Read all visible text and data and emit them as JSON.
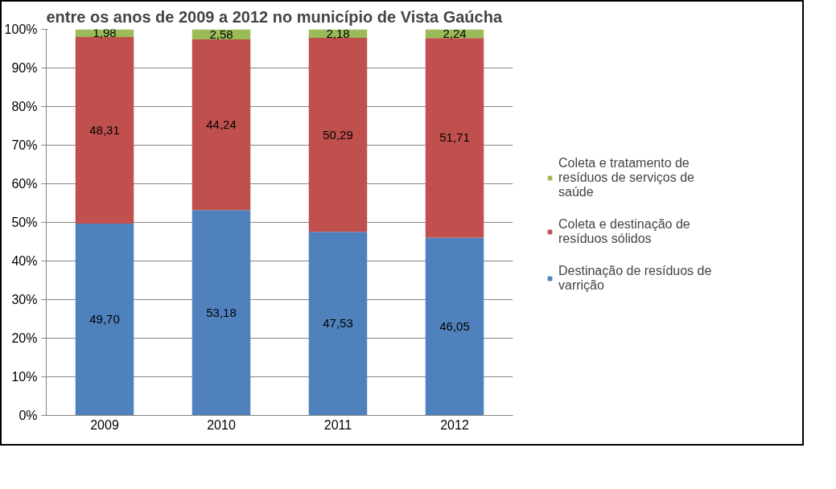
{
  "chart_data": {
    "type": "bar",
    "stacked": true,
    "title": "entre os anos de 2009 a 2012 no município de Vista Gaúcha",
    "categories": [
      "2009",
      "2010",
      "2011",
      "2012"
    ],
    "series": [
      {
        "name": "Destinação de resíduos de varrição",
        "color": "#4f81bd",
        "values": [
          49.7,
          53.18,
          47.53,
          46.05
        ],
        "value_labels": [
          "49,70",
          "53,18",
          "47,53",
          "46,05"
        ]
      },
      {
        "name": "Coleta e destinação de resíduos sólidos",
        "color": "#c0504d",
        "values": [
          48.31,
          44.24,
          50.29,
          51.71
        ],
        "value_labels": [
          "48,31",
          "44,24",
          "50,29",
          "51,71"
        ]
      },
      {
        "name": "Coleta e tratamento de resíduos de serviços de saúde",
        "color": "#9bbb59",
        "values": [
          1.98,
          2.58,
          2.18,
          2.24
        ],
        "value_labels": [
          "1,98",
          "2,58",
          "2,18",
          "2,24"
        ]
      }
    ],
    "ylim": [
      0,
      100
    ],
    "yticks": [
      {
        "value": 0,
        "label": "0%"
      },
      {
        "value": 10,
        "label": "10%"
      },
      {
        "value": 20,
        "label": "20%"
      },
      {
        "value": 30,
        "label": "30%"
      },
      {
        "value": 40,
        "label": "40%"
      },
      {
        "value": 50,
        "label": "50%"
      },
      {
        "value": 60,
        "label": "60%"
      },
      {
        "value": 70,
        "label": "70%"
      },
      {
        "value": 80,
        "label": "80%"
      },
      {
        "value": 90,
        "label": "90%"
      },
      {
        "value": 100,
        "label": "100%"
      }
    ],
    "grid": "y",
    "legend": "right"
  }
}
